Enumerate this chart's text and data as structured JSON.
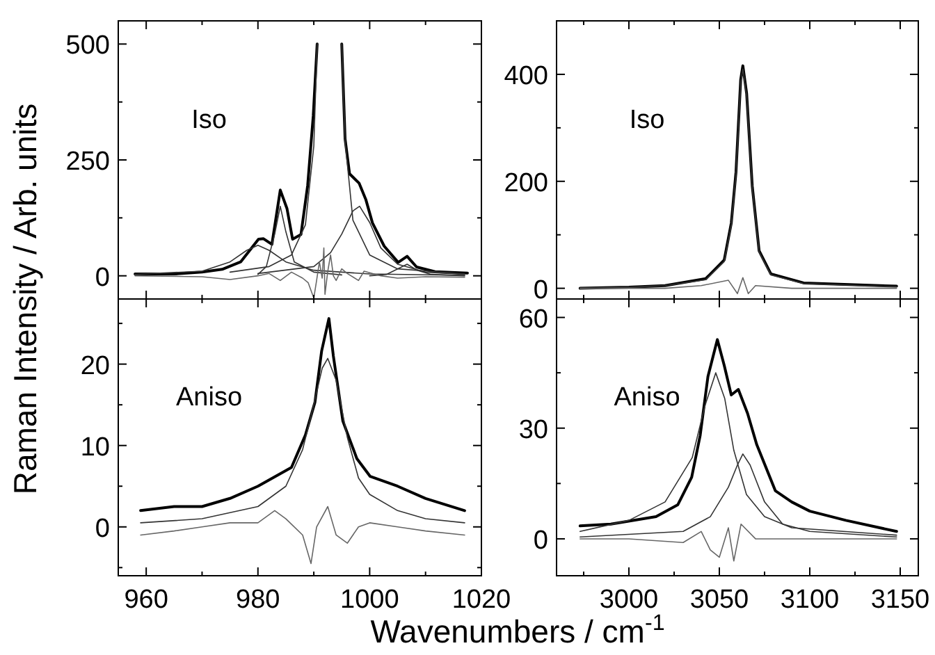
{
  "chart_data": [
    {
      "type": "line",
      "ylabel": "Raman Intensity / Arb. units",
      "annotations": [
        "Iso"
      ],
      "xlim": [
        955,
        1020
      ],
      "ylim": [
        -50,
        550
      ],
      "xticks": [
        960,
        {
          "value": 970,
          "label": null
        },
        980,
        {
          "value": 990,
          "label": null
        },
        1000,
        {
          "value": 1010,
          "label": null
        },
        1020
      ],
      "yticks": [
        0,
        {
          "value": 125,
          "label": null
        },
        250,
        {
          "value": 375,
          "label": null
        },
        500
      ],
      "tick_labels": "y",
      "series": [
        {
          "color": "#000000",
          "x": [
            958,
            965,
            970,
            973.6,
            976.9,
            980.1,
            981,
            982.5,
            984,
            985.2,
            986.2,
            987.7,
            988.9,
            989.9,
            990.6,
            992.8,
            995,
            995.6,
            996.4,
            998.1,
            999.3,
            1000.5,
            1002.6,
            1005.1,
            1006.7,
            1008.4,
            1011.7,
            1017.5
          ],
          "values": [
            4,
            4,
            8,
            14,
            30,
            79,
            80,
            68,
            185,
            145,
            79,
            89,
            195,
            345,
            500,
            null,
            500,
            295,
            220,
            200,
            165,
            114,
            64,
            29,
            42,
            19,
            9,
            6
          ]
        },
        {
          "color": "#333333",
          "x": [
            958,
            970,
            975,
            978,
            980,
            982,
            985,
            990,
            1000,
            1017
          ],
          "values": [
            3,
            10,
            30,
            55,
            66,
            55,
            30,
            12,
            4,
            1
          ]
        },
        {
          "color": "#333333",
          "x": [
            980,
            981.5,
            983,
            984,
            985,
            986.5,
            990,
            995
          ],
          "values": [
            3,
            20,
            90,
            150,
            95,
            30,
            8,
            2
          ]
        },
        {
          "color": "#333333",
          "x": [
            975,
            982,
            986,
            988.5,
            990,
            990.6,
            992.8,
            995,
            995.6,
            997,
            1000,
            1005,
            1017
          ],
          "values": [
            8,
            20,
            45,
            110,
            280,
            500,
            null,
            500,
            290,
            120,
            45,
            15,
            4
          ]
        },
        {
          "color": "#333333",
          "x": [
            980,
            990,
            993,
            995,
            997,
            998.2,
            1000,
            1002,
            1005,
            1010,
            1017
          ],
          "values": [
            5,
            20,
            50,
            90,
            140,
            150,
            115,
            60,
            25,
            8,
            3
          ]
        },
        {
          "color": "#333333",
          "x": [
            1000,
            1003,
            1005,
            1006.7,
            1008.5,
            1011,
            1017
          ],
          "values": [
            0,
            3,
            15,
            25,
            12,
            3,
            0
          ]
        },
        {
          "color": "#666666",
          "x": [
            958,
            970,
            975,
            980,
            982,
            984,
            986,
            988,
            989,
            990,
            990.5,
            991,
            991.5,
            991.8,
            992,
            992.5,
            993,
            993.5,
            994,
            995,
            996,
            998,
            999,
            1002,
            1005,
            1010,
            1017
          ],
          "values": [
            0,
            -2,
            -8,
            0,
            5,
            -10,
            8,
            -5,
            -15,
            -48,
            -10,
            30,
            -5,
            60,
            -40,
            10,
            45,
            0,
            -10,
            15,
            5,
            -10,
            10,
            0,
            -5,
            -2,
            -3
          ]
        }
      ]
    },
    {
      "type": "line",
      "annotations": [
        "Iso"
      ],
      "xlim": [
        2960,
        3160
      ],
      "ylim": [
        -20,
        500
      ],
      "xticks": [
        {
          "value": 2975,
          "label": null
        },
        3000,
        {
          "value": 3025,
          "label": null
        },
        3050,
        {
          "value": 3075,
          "label": null
        },
        3100,
        {
          "value": 3125,
          "label": null
        },
        3150
      ],
      "yticks": [
        0,
        {
          "value": 100,
          "label": null
        },
        200,
        {
          "value": 300,
          "label": null
        },
        400
      ],
      "tick_labels": "y",
      "series": [
        {
          "color": "#000000",
          "x": [
            2973,
            3000,
            3020,
            3042.5,
            3052.7,
            3056.6,
            3059.2,
            3061.8,
            3063,
            3065.1,
            3068.2,
            3072,
            3078.5,
            3096.6,
            3148
          ],
          "values": [
            0,
            2,
            5,
            18,
            53,
            122,
            217,
            390,
            416,
            364,
            191,
            70,
            27,
            10,
            4
          ]
        },
        {
          "color": "#333333",
          "x": [
            2973,
            3000,
            3020,
            3042.5,
            3052.7,
            3056.6,
            3059.2,
            3061.8,
            3063,
            3065.1,
            3068.2,
            3072,
            3078.5,
            3096.6,
            3148
          ],
          "values": [
            0,
            2,
            5,
            16,
            50,
            118,
            212,
            385,
            410,
            360,
            188,
            68,
            25,
            9,
            3
          ]
        },
        {
          "color": "#666666",
          "x": [
            2973,
            3020,
            3040,
            3055,
            3060,
            3063,
            3066,
            3070,
            3090,
            3148
          ],
          "values": [
            0,
            0,
            5,
            15,
            -10,
            20,
            -10,
            5,
            0,
            0
          ]
        }
      ]
    },
    {
      "type": "line",
      "annotations": [
        "Aniso"
      ],
      "xlim": [
        955,
        1020
      ],
      "ylim": [
        -6,
        28
      ],
      "xticks": [
        960,
        {
          "value": 970,
          "label": null
        },
        980,
        {
          "value": 990,
          "label": null
        },
        1000,
        {
          "value": 1010,
          "label": null
        },
        1020
      ],
      "yticks": [
        {
          "value": -5,
          "label": null
        },
        0,
        {
          "value": 5,
          "label": null
        },
        10,
        {
          "value": 15,
          "label": null
        },
        20,
        {
          "value": 25,
          "label": null
        }
      ],
      "series": [
        {
          "color": "#000000",
          "x": [
            959,
            965,
            970,
            975,
            980,
            986,
            988.5,
            990.2,
            991.4,
            992.7,
            993.5,
            995.2,
            997.7,
            1000.1,
            1005,
            1010,
            1017
          ],
          "values": [
            2,
            2.5,
            2.5,
            3.5,
            5,
            7.3,
            11.3,
            15.3,
            21.6,
            25.6,
            21,
            13,
            8.4,
            6.2,
            5,
            3.5,
            2
          ]
        },
        {
          "color": "#333333",
          "x": [
            959,
            970,
            980,
            985,
            988,
            990,
            991.5,
            992.5,
            994,
            996,
            998,
            1000,
            1005,
            1010,
            1017
          ],
          "values": [
            0.5,
            1,
            2.5,
            5,
            9.5,
            15,
            19.5,
            20.7,
            18,
            11,
            6,
            4,
            2,
            1,
            0.5
          ]
        },
        {
          "color": "#666666",
          "x": [
            959,
            965,
            970,
            975,
            980,
            983,
            985,
            988,
            989.5,
            990.5,
            992.5,
            994,
            996,
            998,
            1000,
            1005,
            1010,
            1017
          ],
          "values": [
            -1,
            -0.5,
            0,
            0.5,
            0.5,
            2,
            1,
            -1,
            -4.5,
            0,
            2.5,
            -1,
            -2,
            0,
            0.5,
            0,
            -0.5,
            -1
          ]
        }
      ]
    },
    {
      "type": "line",
      "annotations": [
        "Aniso"
      ],
      "xlabel": "Wavenumbers / cm$^{-1}$",
      "xlim": [
        2960,
        3160
      ],
      "ylim": [
        -10,
        65
      ],
      "xticks": [
        {
          "value": 2975,
          "label": null
        },
        3000,
        {
          "value": 3025,
          "label": null
        },
        3050,
        {
          "value": 3075,
          "label": null
        },
        3100,
        {
          "value": 3125,
          "label": null
        },
        3150
      ],
      "yticks": [
        0,
        {
          "value": 15,
          "label": null
        },
        30,
        {
          "value": 45,
          "label": null
        },
        60
      ],
      "series": [
        {
          "color": "#000000",
          "x": [
            2973,
            2990,
            3015,
            3027,
            3034.7,
            3039.4,
            3043.7,
            3048.9,
            3052.7,
            3056.6,
            3060.5,
            3065.6,
            3070.7,
            3081,
            3090,
            3100,
            3120,
            3148
          ],
          "values": [
            3.5,
            4,
            6,
            9.2,
            16.7,
            28,
            44,
            54,
            47,
            39,
            40.5,
            34,
            25.5,
            13,
            10,
            7.5,
            5,
            2
          ]
        },
        {
          "color": "#333333",
          "x": [
            2973,
            3000,
            3020,
            3035,
            3042,
            3048,
            3053,
            3058,
            3065,
            3075,
            3090,
            3148
          ],
          "values": [
            2,
            5,
            10,
            22,
            36,
            45,
            38,
            24,
            12,
            6,
            3,
            1
          ]
        },
        {
          "color": "#333333",
          "x": [
            2973,
            3030,
            3045,
            3055,
            3060,
            3063,
            3067,
            3075,
            3085,
            3100,
            3148
          ],
          "values": [
            0.5,
            2,
            6,
            14,
            20,
            23,
            20,
            10,
            4,
            2,
            0.5
          ]
        },
        {
          "color": "#666666",
          "x": [
            2973,
            3000,
            3030,
            3040,
            3045,
            3050,
            3055,
            3058,
            3062,
            3070,
            3100,
            3148
          ],
          "values": [
            0,
            0,
            -1,
            2,
            -3,
            -5,
            3,
            -6,
            4,
            0,
            0,
            0
          ]
        }
      ]
    }
  ]
}
